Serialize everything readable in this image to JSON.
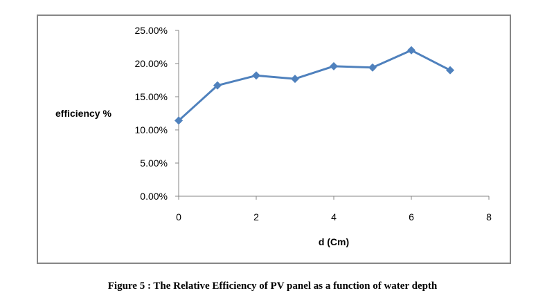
{
  "figure_caption": "Figure 5 : The Relative Efficiency of PV panel as a function of water depth",
  "chart_data": {
    "type": "line",
    "title": "",
    "xlabel": "d (Cm)",
    "ylabel": "efficiency %",
    "xlim": [
      0,
      8
    ],
    "ylim": [
      0,
      0.25
    ],
    "x_ticks": [
      0,
      2,
      4,
      6,
      8
    ],
    "x_tick_labels": [
      "0",
      "2",
      "4",
      "6",
      "8"
    ],
    "y_ticks": [
      0,
      0.05,
      0.1,
      0.15,
      0.2,
      0.25
    ],
    "y_tick_labels": [
      "0.00%",
      "5.00%",
      "10.00%",
      "15.00%",
      "20.00%",
      "25.00%"
    ],
    "grid": false,
    "legend": "none",
    "series": [
      {
        "name": "efficiency",
        "color": "#4f81bd",
        "marker": "diamond",
        "x": [
          0,
          1,
          2,
          3,
          4,
          5,
          6,
          7
        ],
        "values": [
          0.114,
          0.167,
          0.182,
          0.177,
          0.196,
          0.194,
          0.22,
          0.19
        ]
      }
    ]
  }
}
